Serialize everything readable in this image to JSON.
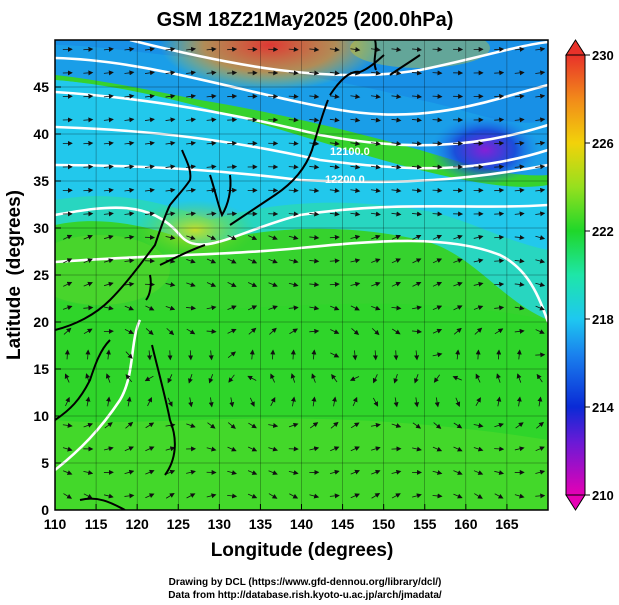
{
  "chart_data": {
    "type": "heatmap",
    "title": "GSM 18Z21May2025 (200.0hPa)",
    "xlabel": "Longitude (degrees)",
    "ylabel": "Latitude  (degrees)",
    "xlim": [
      110,
      170
    ],
    "ylim": [
      0,
      50
    ],
    "x_ticks": [
      "110",
      "115",
      "120",
      "125",
      "130",
      "135",
      "140",
      "145",
      "150",
      "155",
      "160",
      "165"
    ],
    "y_ticks": [
      "0",
      "5",
      "10",
      "15",
      "20",
      "25",
      "30",
      "35",
      "40",
      "45"
    ],
    "x_tick_values": [
      110,
      115,
      120,
      125,
      130,
      135,
      140,
      145,
      150,
      155,
      160,
      165
    ],
    "y_tick_values": [
      0,
      5,
      10,
      15,
      20,
      25,
      30,
      35,
      40,
      45
    ],
    "colorbar": {
      "min": 210,
      "max": 230,
      "tick_labels": [
        "210",
        "214",
        "218",
        "222",
        "226",
        "230"
      ],
      "tick_values": [
        210,
        214,
        218,
        222,
        226,
        230
      ]
    },
    "contour_labels": [
      {
        "text": "12100.0",
        "lon": 141.5,
        "lat": 40.3
      },
      {
        "text": "12200.0",
        "lon": 141.0,
        "lat": 37.5
      }
    ],
    "footer_lines": [
      "Drawing by DCL (https://www.gfd-dennou.org/library/dcl/)",
      "Data from http://database.rish.kyoto-u.ac.jp/arch/jmadata/"
    ],
    "colors": {
      "c210": "#e600b4",
      "c214": "#0a2ad6",
      "c218": "#1ec8f0",
      "c222": "#1fd72a",
      "c226": "#f2d20a",
      "c230": "#e8322a",
      "contour": "#ffffff",
      "vectors": "#111111",
      "coast": "#000000"
    }
  }
}
